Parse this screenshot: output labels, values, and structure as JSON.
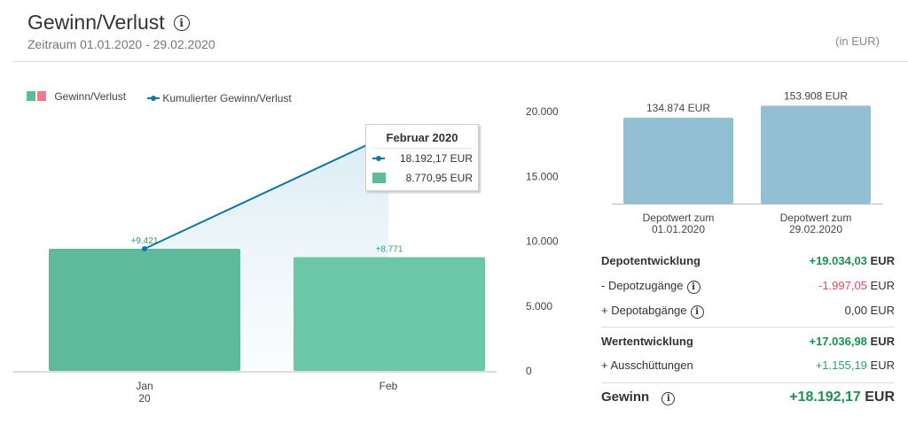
{
  "header": {
    "title": "Gewinn/Verlust",
    "subtitle": "Zeitraum 01.01.2020 - 29.02.2020",
    "unit": "(in EUR)"
  },
  "legend": {
    "bars": "Gewinn/Verlust",
    "line": "Kumulierter Gewinn/Verlust"
  },
  "colors": {
    "bar": "#5fba9b",
    "bar_light": "#6cc7a8",
    "loss": "#ef7c8a",
    "line": "#0e78a0",
    "depot": "#92bfd3",
    "green": "#1a9150",
    "red": "#e8485c"
  },
  "chart_data": {
    "type": "bar",
    "categories": [
      "Jan\n20",
      "Feb"
    ],
    "category_labels": [
      [
        "Jan",
        "20"
      ],
      [
        "Feb"
      ]
    ],
    "series": [
      {
        "name": "Gewinn/Verlust",
        "values": [
          9421,
          8771
        ],
        "labels": [
          "+9.421",
          "+8.771"
        ]
      },
      {
        "name": "Kumulierter Gewinn/Verlust",
        "type": "line",
        "values": [
          9421,
          18192.17
        ]
      }
    ],
    "ylim": [
      0,
      20000
    ],
    "yticks": [
      0,
      5000,
      10000,
      15000,
      20000
    ],
    "ytick_labels": [
      "0",
      "5.000",
      "10.000",
      "15.000",
      "20.000"
    ]
  },
  "tooltip": {
    "title": "Februar 2020",
    "line_value": "18.192,17 EUR",
    "bar_value": "8.770,95 EUR"
  },
  "depot_chart": {
    "values": [
      134874,
      153908
    ],
    "labels": [
      "134.874 EUR",
      "153.908 EUR"
    ],
    "captions": [
      [
        "Depotwert zum",
        "01.01.2020"
      ],
      [
        "Depotwert zum",
        "29.02.2020"
      ]
    ]
  },
  "summary": {
    "depotentwicklung": {
      "label": "Depotentwicklung",
      "value": "+19.034,03",
      "cur": "EUR"
    },
    "zugaenge": {
      "label": "- Depotzugänge",
      "value": "-1.997,05",
      "cur": "EUR"
    },
    "abgaenge": {
      "label": "+ Depotabgänge",
      "value": "0,00 EUR"
    },
    "wertentwicklung": {
      "label": "Wertentwicklung",
      "value": "+17.036,98",
      "cur": "EUR"
    },
    "ausschuettungen": {
      "label": "+ Ausschüttungen",
      "value": "+1.155,19",
      "cur": "EUR"
    },
    "gewinn": {
      "label": "Gewinn",
      "value": "+18.192,17",
      "cur": "EUR"
    }
  },
  "info_glyph": "i"
}
